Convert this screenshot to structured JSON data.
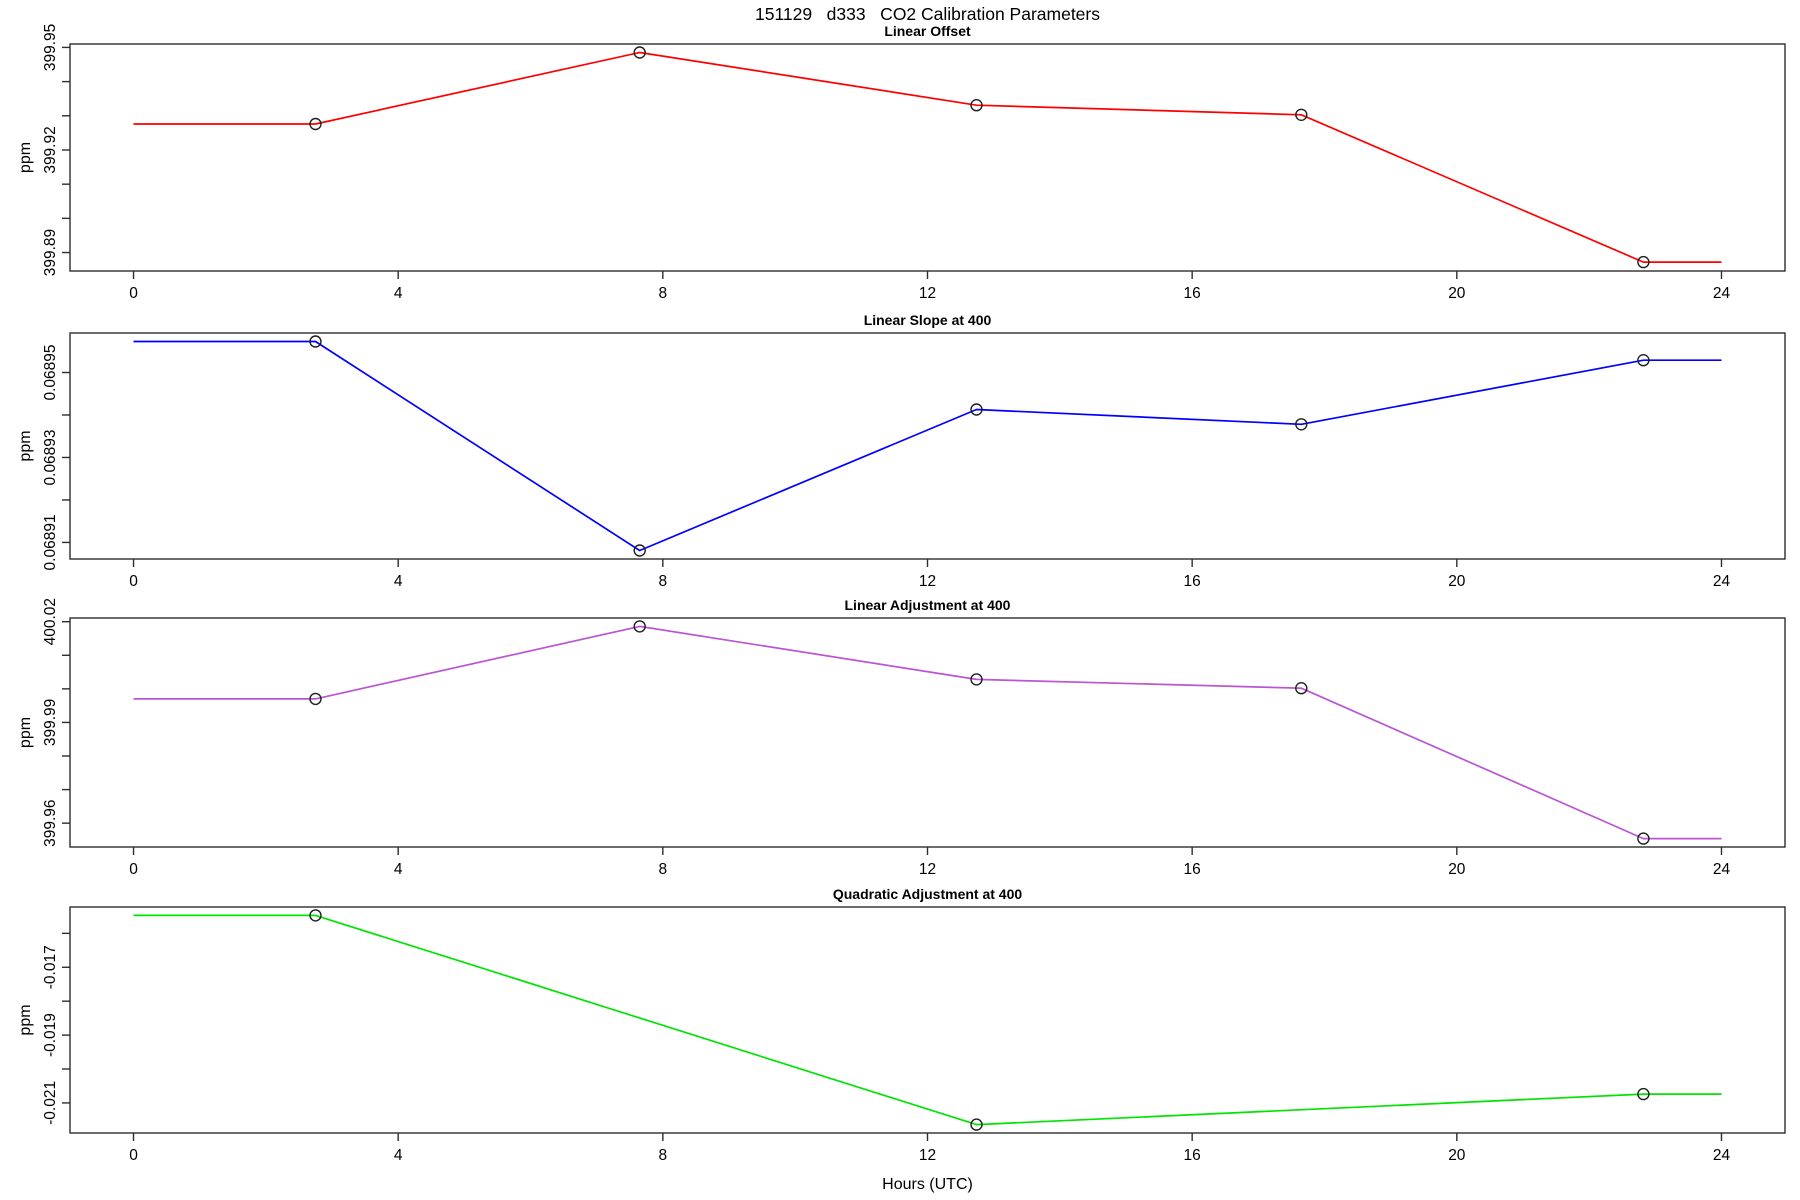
{
  "page": {
    "background": "#ffffff",
    "axis_color": "#2d2d2d",
    "text_color": "#000000"
  },
  "chart_data": {
    "type": "line",
    "title": "151129   d333   CO2 Calibration Parameters",
    "xlabel": "Hours (UTC)",
    "xlim": [
      -0.96,
      24.96
    ],
    "xticks": [
      0,
      4,
      8,
      12,
      16,
      20,
      24
    ],
    "xtick_labels": [
      "0",
      "4",
      "8",
      "12",
      "16",
      "20",
      "24"
    ],
    "grid": false,
    "legend": "none",
    "marker_style": "open-circle",
    "panels": [
      {
        "title": "Linear Offset",
        "ylabel": "ppm",
        "color": "#ff0000",
        "x": [
          0,
          2.75,
          7.65,
          12.74,
          17.65,
          22.82,
          24
        ],
        "y": [
          399.9276,
          399.9276,
          399.9485,
          399.9331,
          399.9303,
          399.8872,
          399.8872
        ],
        "marker_indices": [
          1,
          2,
          3,
          4,
          5
        ],
        "ylim": [
          399.8846,
          399.951
        ],
        "yticks": [
          399.89,
          399.9,
          399.91,
          399.92,
          399.93,
          399.94,
          399.95
        ],
        "ytick_labels": [
          "399.89",
          "",
          "",
          "399.92",
          "",
          "",
          "399.95"
        ]
      },
      {
        "title": "Linear Slope at 400",
        "ylabel": "ppm",
        "color": "#0000ff",
        "x": [
          0,
          2.75,
          7.65,
          12.74,
          17.65,
          22.82,
          24
        ],
        "y": [
          0.0689573,
          0.0689573,
          0.0689081,
          0.0689413,
          0.0689378,
          0.0689529,
          0.0689529
        ],
        "marker_indices": [
          1,
          2,
          3,
          4,
          5
        ],
        "ylim": [
          0.0689061,
          0.0689593
        ],
        "yticks": [
          0.06891,
          0.06892,
          0.06893,
          0.06894,
          0.06895
        ],
        "ytick_labels": [
          "0.06891",
          "",
          "0.06893",
          "",
          "0.06895"
        ]
      },
      {
        "title": "Linear Adjustment at 400",
        "ylabel": "ppm",
        "color": "#ba55d3",
        "x": [
          0,
          2.75,
          7.65,
          12.74,
          17.65,
          22.82,
          24
        ],
        "y": [
          399.997,
          399.997,
          400.0186,
          400.0028,
          400.0002,
          399.9554,
          399.9554
        ],
        "marker_indices": [
          1,
          2,
          3,
          4,
          5
        ],
        "ylim": [
          399.9529,
          400.0211
        ],
        "yticks": [
          399.96,
          399.97,
          399.98,
          399.99,
          400.0,
          400.01,
          400.02
        ],
        "ytick_labels": [
          "399.96",
          "",
          "",
          "399.99",
          "",
          "",
          "400.02"
        ]
      },
      {
        "title": "Quadratic Adjustment at 400",
        "ylabel": "ppm",
        "color": "#00e400",
        "x": [
          0,
          2.75,
          12.74,
          22.82,
          24
        ],
        "y": [
          -0.01547,
          -0.01547,
          -0.02164,
          -0.02074,
          -0.02074
        ],
        "marker_indices": [
          1,
          2,
          3
        ],
        "ylim": [
          -0.021887,
          -0.015223
        ],
        "yticks": [
          -0.021,
          -0.02,
          -0.019,
          -0.018,
          -0.017,
          -0.016
        ],
        "ytick_labels": [
          "-0.021",
          "",
          "-0.019",
          "",
          "-0.017",
          ""
        ]
      }
    ]
  }
}
